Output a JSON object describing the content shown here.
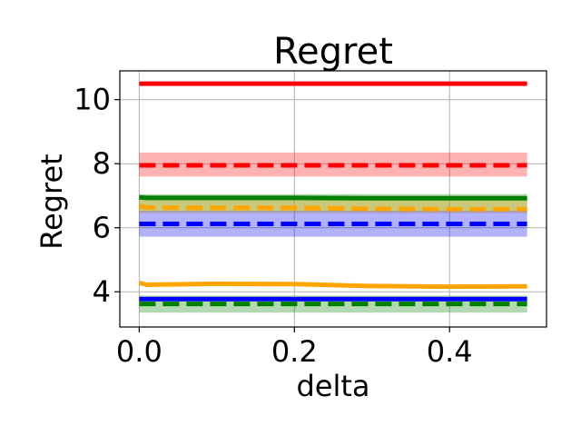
{
  "chart_data": {
    "type": "line",
    "title": "Regret",
    "xlabel": "delta",
    "ylabel": "Regret",
    "xlim": [
      -0.025,
      0.525
    ],
    "ylim": [
      2.9,
      10.9
    ],
    "xticks": [
      0.0,
      0.2,
      0.4
    ],
    "xtick_labels": [
      "0.0",
      "0.2",
      "0.4"
    ],
    "yticks": [
      4,
      6,
      8,
      10
    ],
    "ytick_labels": [
      "4",
      "6",
      "8",
      "10"
    ],
    "grid": true,
    "legend": "none",
    "x": [
      0.0,
      0.01,
      0.1,
      0.2,
      0.3,
      0.4,
      0.5
    ],
    "series": [
      {
        "color": "#ff0000",
        "dash": false,
        "values": [
          10.5,
          10.5,
          10.5,
          10.5,
          10.5,
          10.5,
          10.5
        ],
        "band": null
      },
      {
        "color": "#ff0000",
        "dash": true,
        "values": [
          7.95,
          7.95,
          7.95,
          7.95,
          7.95,
          7.95,
          7.95
        ],
        "band": [
          7.6,
          8.35
        ]
      },
      {
        "color": "#008000",
        "dash": false,
        "values": [
          6.95,
          6.93,
          6.93,
          6.93,
          6.92,
          6.92,
          6.92
        ],
        "band": [
          6.5,
          7.05
        ]
      },
      {
        "color": "#ffa500",
        "dash": true,
        "values": [
          6.68,
          6.63,
          6.62,
          6.62,
          6.59,
          6.58,
          6.58
        ],
        "band": [
          6.45,
          6.95
        ]
      },
      {
        "color": "#0000ff",
        "dash": true,
        "values": [
          6.12,
          6.12,
          6.12,
          6.12,
          6.12,
          6.12,
          6.12
        ],
        "band": [
          5.72,
          6.52
        ]
      },
      {
        "color": "#ffa500",
        "dash": false,
        "values": [
          4.28,
          4.22,
          4.25,
          4.24,
          4.18,
          4.16,
          4.17
        ],
        "band": null
      },
      {
        "color": "#0000ff",
        "dash": false,
        "values": [
          3.77,
          3.77,
          3.77,
          3.77,
          3.77,
          3.77,
          3.77
        ],
        "band": null
      },
      {
        "color": "#008000",
        "dash": true,
        "values": [
          3.62,
          3.62,
          3.62,
          3.62,
          3.62,
          3.62,
          3.62
        ],
        "band": [
          3.35,
          3.88
        ]
      }
    ]
  }
}
